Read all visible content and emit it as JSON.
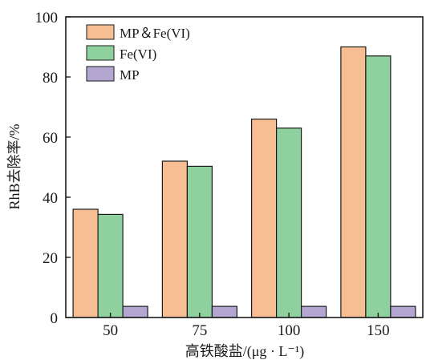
{
  "chart_data": {
    "type": "bar",
    "categories": [
      "50",
      "75",
      "100",
      "150"
    ],
    "series": [
      {
        "name": "MP＆Fe(VI)",
        "color": "#f8be93",
        "values": [
          36,
          52,
          66,
          90
        ]
      },
      {
        "name": "Fe(VI)",
        "color": "#8fd19e",
        "values": [
          34.3,
          50.3,
          63,
          87
        ]
      },
      {
        "name": "MP",
        "color": "#b3a6d1",
        "values": [
          3.7,
          3.7,
          3.7,
          3.7
        ]
      }
    ],
    "xlabel": "高铁酸盐/(μg · L⁻¹)",
    "ylabel": "RhB去除率/%",
    "ylim": [
      0,
      100
    ],
    "yticks": [
      0,
      20,
      40,
      60,
      80,
      100
    ],
    "legend_position": "top-left",
    "grid": false
  }
}
